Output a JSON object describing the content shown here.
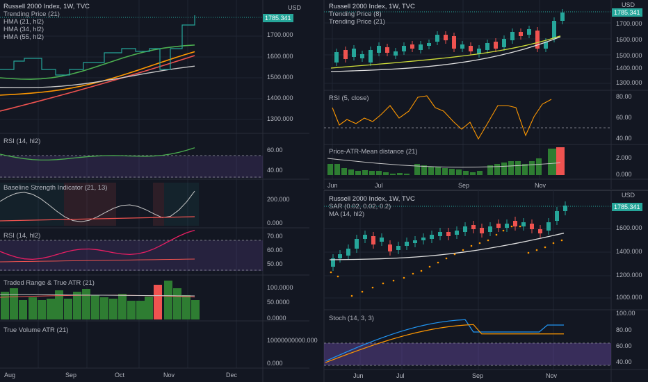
{
  "colors": {
    "bg": "#131722",
    "grid": "#1f2433",
    "border": "#2a2e39",
    "up": "#26a69a",
    "down": "#ef5350",
    "green": "#4caf50",
    "orange": "#ff9800",
    "white": "#d1d4dc",
    "purple": "#7e57c2",
    "pink": "#e91e63"
  },
  "left": {
    "main": {
      "title": "Russell 2000 Index, 1W, TVC",
      "legend": [
        "Trending Price (21)",
        "HMA (21, hl2)",
        "HMA (34, hl2)",
        "HMA (55, hl2)"
      ],
      "usd": "USD",
      "price_tag": "1785.341",
      "ticks": [
        "1700.000",
        "1600.000",
        "1500.000",
        "1400.000",
        "1300.000"
      ]
    },
    "rsi1": {
      "title": "RSI (14, hl2)",
      "ticks": [
        "60.00",
        "40.00"
      ]
    },
    "baseline": {
      "title": "Baseline Strength Indicator (21, 13)",
      "ticks": [
        "200.000",
        "0.000"
      ]
    },
    "rsi2": {
      "title": "RSI (14, hl2)",
      "ticks": [
        "70.00",
        "60.00",
        "50.00"
      ]
    },
    "traded": {
      "title": "Traded Range & True ATR (21)",
      "ticks": [
        "100.0000",
        "50.0000",
        "0.0000"
      ]
    },
    "tvol": {
      "title": "True Volume ATR (21)",
      "ticks": [
        "10000000000.000",
        "0.000"
      ]
    },
    "dates": [
      "Aug",
      "Sep",
      "Oct",
      "Nov",
      "Dec"
    ]
  },
  "right_top": {
    "main": {
      "title": "Russell 2000 Index, 1W, TVC",
      "legend": [
        "Trending Price (8)",
        "Trending Price (21)"
      ],
      "usd": "USD",
      "price_tag": "1785.341",
      "ticks": [
        "1700.000",
        "1600.000",
        "1500.000",
        "1400.000",
        "1300.000"
      ]
    },
    "rsi": {
      "title": "RSI (5, close)",
      "ticks": [
        "80.00",
        "60.00",
        "40.00"
      ]
    },
    "patr": {
      "title": "Price-ATR-Mean distance (21)",
      "ticks": [
        "2.000",
        "0.000"
      ]
    },
    "dates": [
      "Jun",
      "Jul",
      "Sep",
      "Nov"
    ]
  },
  "right_bottom": {
    "main": {
      "title": "Russell 2000 Index, 1W, TVC",
      "legend": [
        "SAR (0.02, 0.02, 0.2)",
        "MA (14, hl2)"
      ],
      "usd": "USD",
      "price_tag": "1785.341",
      "ticks": [
        "1600.000",
        "1400.000",
        "1200.000",
        "1000.000"
      ]
    },
    "stoch": {
      "title": "Stoch (14, 3, 3)",
      "ticks": [
        "100.00",
        "80.00",
        "60.00",
        "40.00"
      ]
    },
    "dates": [
      "Jun",
      "Jul",
      "Sep",
      "Nov"
    ]
  }
}
